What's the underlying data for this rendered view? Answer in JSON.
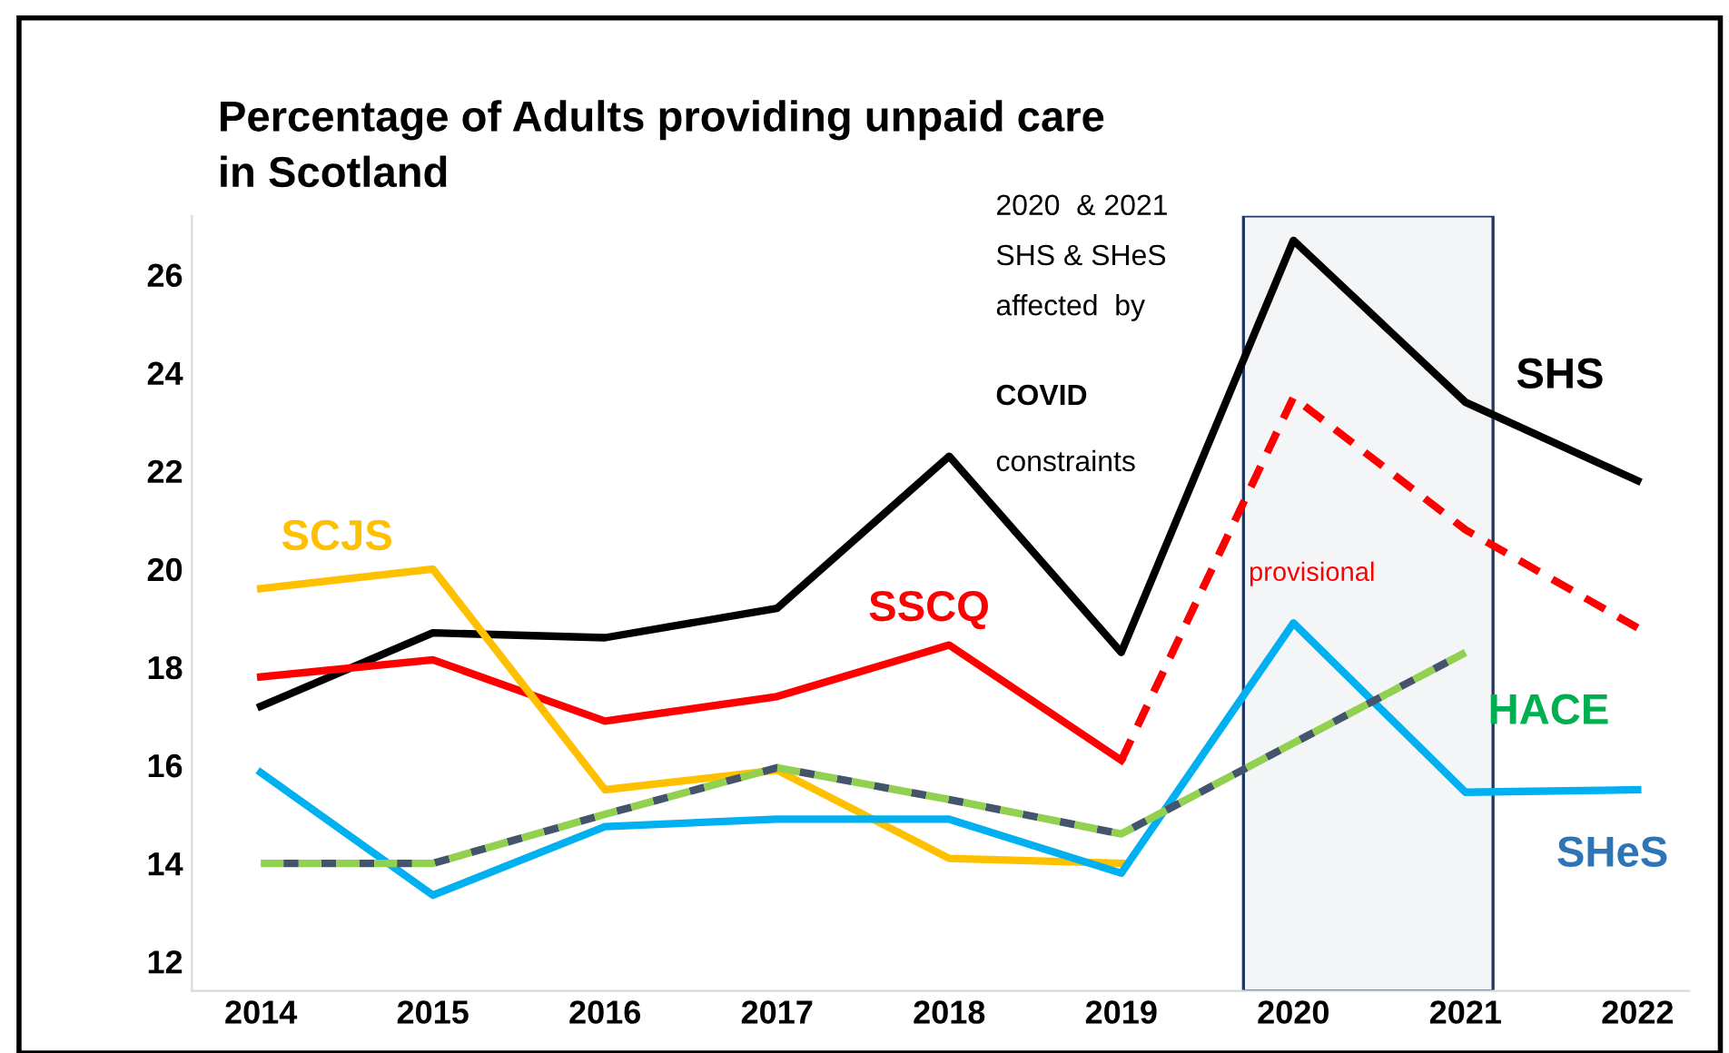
{
  "chart_data": {
    "type": "line",
    "title": "Percentage of Adults providing unpaid care\nin Scotland",
    "x": [
      2014,
      2015,
      2016,
      2017,
      2018,
      2019,
      2020,
      2021,
      2022
    ],
    "series": [
      {
        "name": "SHS",
        "color": "#000000",
        "values": [
          17.2,
          18.7,
          18.6,
          19.2,
          22.3,
          18.3,
          26.7,
          23.4,
          21.8
        ]
      },
      {
        "name": "SSCQ",
        "color": "#ff0000",
        "values": [
          17.8,
          18.15,
          16.9,
          17.4,
          18.45,
          16.1,
          null,
          null,
          null
        ]
      },
      {
        "color": "#ff0000",
        "line_style": "dashed",
        "values": [
          null,
          null,
          null,
          null,
          null,
          16.1,
          23.5,
          20.8,
          18.8
        ]
      },
      {
        "name": "SCJS",
        "color": "#ffc000",
        "values": [
          19.6,
          20.0,
          15.5,
          15.9,
          14.1,
          14.0,
          null,
          null,
          null
        ]
      },
      {
        "name": "SHeS",
        "color": "#00b0f0",
        "values": [
          15.85,
          13.35,
          14.75,
          14.9,
          14.9,
          13.8,
          18.9,
          15.45,
          15.5
        ]
      },
      {
        "name": "HACE",
        "color": "#92d050",
        "line_style": "dashed",
        "values": [
          14.0,
          14.0,
          15.0,
          15.95,
          15.3,
          14.6,
          16.45,
          18.3,
          null
        ]
      }
    ],
    "xlim": [
      2013.6,
      2022.3
    ],
    "xticks": [
      2014,
      2015,
      2016,
      2017,
      2018,
      2019,
      2020,
      2021,
      2022
    ],
    "ylim": [
      11.4,
      27.2
    ],
    "yticks": [
      12,
      14,
      16,
      18,
      20,
      22,
      24,
      26
    ],
    "bands": [
      {
        "axis": "x",
        "from": 2019.71,
        "to": 2021.16,
        "color": "#1f3864"
      }
    ],
    "annotations": [
      "2020  & 2021\nSHS & SHeS\naffected  by",
      "COVID",
      "constraints",
      "provisional"
    ],
    "grid": false,
    "legend": false,
    "marker": "none",
    "line_style": "solid"
  }
}
